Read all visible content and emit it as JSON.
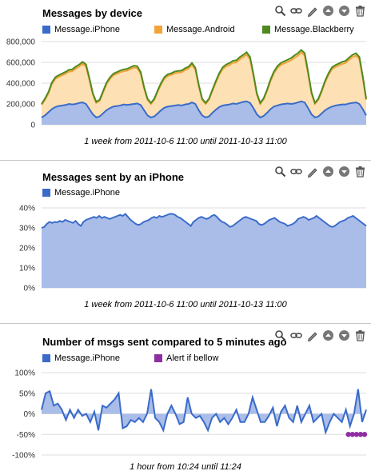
{
  "colors": {
    "iphone": "#3a6bc9",
    "iphone_fill": "#a9bde8",
    "android": "#f2a33a",
    "android_fill": "#fde0b4",
    "blackberry": "#4e8a1f",
    "alert": "#8e2ea0",
    "grid": "#dddddd"
  },
  "toolbar_icons": [
    "search-icon",
    "link-icon",
    "pencil-icon",
    "arrow-up-icon",
    "arrow-down-icon",
    "trash-icon"
  ],
  "chart_data": [
    {
      "type": "area",
      "title": "Messages by device",
      "caption": "1 week from 2011-10-6 11:00 until 2011-10-13 11:00",
      "ylim": [
        0,
        800000
      ],
      "yticks": [
        {
          "v": 0,
          "label": "0"
        },
        {
          "v": 200000,
          "label": "200,000"
        },
        {
          "v": 400000,
          "label": "400,000"
        },
        {
          "v": 600000,
          "label": "600,000"
        },
        {
          "v": 800000,
          "label": "800,000"
        }
      ],
      "grid": true,
      "legend": "top",
      "stacked": true,
      "series": [
        {
          "name": "Message.iPhone",
          "color_key": "iphone",
          "values": [
            70000,
            90000,
            120000,
            150000,
            170000,
            180000,
            185000,
            190000,
            200000,
            195000,
            200000,
            210000,
            215000,
            200000,
            150000,
            100000,
            70000,
            80000,
            110000,
            140000,
            160000,
            175000,
            180000,
            185000,
            195000,
            190000,
            195000,
            200000,
            205000,
            190000,
            140000,
            90000,
            70000,
            80000,
            110000,
            140000,
            165000,
            175000,
            180000,
            185000,
            190000,
            185000,
            195000,
            200000,
            215000,
            200000,
            140000,
            90000,
            70000,
            80000,
            115000,
            145000,
            170000,
            185000,
            190000,
            195000,
            205000,
            200000,
            210000,
            220000,
            225000,
            210000,
            160000,
            100000,
            70000,
            85000,
            115000,
            150000,
            175000,
            185000,
            195000,
            200000,
            205000,
            200000,
            205000,
            215000,
            225000,
            215000,
            160000,
            100000,
            70000,
            80000,
            110000,
            140000,
            160000,
            175000,
            185000,
            190000,
            195000,
            195000,
            205000,
            210000,
            215000,
            200000,
            150000,
            90000
          ]
        },
        {
          "name": "Message.Android",
          "color_key": "android",
          "values": [
            120000,
            150000,
            180000,
            240000,
            270000,
            280000,
            290000,
            300000,
            310000,
            320000,
            340000,
            350000,
            370000,
            360000,
            280000,
            190000,
            140000,
            150000,
            200000,
            250000,
            280000,
            300000,
            310000,
            320000,
            320000,
            330000,
            340000,
            350000,
            340000,
            300000,
            210000,
            150000,
            130000,
            160000,
            210000,
            250000,
            280000,
            295000,
            300000,
            310000,
            310000,
            320000,
            330000,
            340000,
            360000,
            330000,
            230000,
            150000,
            130000,
            160000,
            210000,
            260000,
            310000,
            350000,
            370000,
            380000,
            390000,
            400000,
            420000,
            430000,
            450000,
            420000,
            310000,
            190000,
            130000,
            160000,
            210000,
            270000,
            320000,
            360000,
            380000,
            390000,
            400000,
            420000,
            440000,
            450000,
            470000,
            450000,
            330000,
            200000,
            130000,
            160000,
            210000,
            270000,
            320000,
            360000,
            370000,
            380000,
            390000,
            400000,
            420000,
            440000,
            450000,
            430000,
            300000,
            150000
          ]
        },
        {
          "name": "Message.Blackberry",
          "color_key": "blackberry",
          "values": [
            10000,
            12000,
            14000,
            15000,
            16000,
            17000,
            17000,
            18000,
            18000,
            18000,
            19000,
            19000,
            20000,
            20000,
            17000,
            12000,
            10000,
            11000,
            13000,
            14000,
            15000,
            16000,
            16000,
            17000,
            17000,
            17000,
            18000,
            18000,
            18000,
            17000,
            13000,
            10000,
            10000,
            11000,
            13000,
            14000,
            15000,
            16000,
            16000,
            17000,
            17000,
            17000,
            18000,
            18000,
            19000,
            18000,
            14000,
            10000,
            10000,
            11000,
            13000,
            15000,
            17000,
            18000,
            19000,
            19000,
            20000,
            20000,
            21000,
            22000,
            23000,
            22000,
            17000,
            11000,
            10000,
            11000,
            13000,
            15000,
            17000,
            18000,
            19000,
            20000,
            20000,
            21000,
            22000,
            23000,
            24000,
            23000,
            17000,
            11000,
            10000,
            11000,
            13000,
            15000,
            17000,
            18000,
            19000,
            19000,
            20000,
            20000,
            21000,
            22000,
            23000,
            22000,
            15000,
            9000
          ]
        }
      ]
    },
    {
      "type": "area",
      "title": "Messages sent by an iPhone",
      "caption": "1 week from 2011-10-6 11:00 until 2011-10-13 11:00",
      "ylim": [
        0,
        40
      ],
      "yticks": [
        {
          "v": 0,
          "label": "0%"
        },
        {
          "v": 10,
          "label": "10%"
        },
        {
          "v": 20,
          "label": "20%"
        },
        {
          "v": 30,
          "label": "30%"
        },
        {
          "v": 40,
          "label": "40%"
        }
      ],
      "grid": true,
      "legend": "top",
      "series": [
        {
          "name": "Message.iPhone",
          "color_key": "iphone",
          "values": [
            30,
            30.5,
            32,
            33,
            32.5,
            33,
            32.8,
            33.5,
            33,
            34,
            33.5,
            33,
            32.5,
            33.5,
            32,
            31,
            33,
            34,
            34.5,
            35,
            35.5,
            35,
            36,
            35,
            35.5,
            35,
            34.5,
            35,
            35.5,
            36,
            36.5,
            36,
            37,
            35.5,
            34,
            33,
            32,
            31.5,
            32,
            33,
            33.5,
            34,
            35,
            35.5,
            35,
            36,
            35.5,
            36,
            36.5,
            37,
            37,
            36.5,
            35.5,
            35,
            34,
            33,
            32,
            31,
            33,
            34,
            35,
            35.5,
            35,
            34.5,
            35,
            36,
            36.5,
            35.5,
            34,
            33,
            32.5,
            31.5,
            30.5,
            31,
            32,
            33,
            34,
            35,
            35.5,
            35,
            34.5,
            34,
            33.5,
            32,
            31.5,
            32,
            33,
            34,
            34.5,
            35,
            34,
            33,
            32.5,
            32,
            31,
            31.5,
            32,
            33,
            34.5,
            35,
            35.5,
            35,
            34,
            34.5,
            35,
            36,
            35,
            34,
            33,
            32,
            31,
            30.5,
            31,
            32,
            33,
            33.5,
            34,
            35,
            35.5,
            36,
            35,
            34,
            33,
            32,
            31
          ]
        }
      ]
    },
    {
      "type": "line",
      "title": "Number of msgs sent compared to 5 minutes ago",
      "caption": "1 hour from 10:24 until 11:24",
      "ylim": [
        -100,
        100
      ],
      "yticks": [
        {
          "v": -100,
          "label": "-100%"
        },
        {
          "v": -50,
          "label": "-50%"
        },
        {
          "v": 0,
          "label": "0%"
        },
        {
          "v": 50,
          "label": "50%"
        },
        {
          "v": 100,
          "label": "100%"
        }
      ],
      "grid": true,
      "legend": "top",
      "series": [
        {
          "name": "Message.iPhone",
          "color_key": "iphone",
          "values": [
            10,
            50,
            55,
            20,
            25,
            10,
            -15,
            10,
            -10,
            10,
            -5,
            0,
            -20,
            5,
            -40,
            20,
            15,
            25,
            35,
            50,
            -35,
            -30,
            -15,
            -20,
            -10,
            -20,
            0,
            60,
            -10,
            -20,
            -40,
            0,
            20,
            0,
            -25,
            -20,
            40,
            0,
            -10,
            -5,
            -20,
            -40,
            -10,
            0,
            -20,
            -10,
            -25,
            -10,
            10,
            -20,
            -20,
            0,
            40,
            10,
            -20,
            -20,
            -5,
            15,
            -30,
            5,
            20,
            -10,
            -20,
            20,
            -20,
            0,
            20,
            -20,
            -10,
            0,
            -45,
            -20,
            0,
            -10,
            -20,
            10,
            -30,
            0,
            60,
            -20,
            10
          ]
        },
        {
          "name": "Alert if bellow",
          "color_key": "alert",
          "values": [
            -50,
            -50,
            -50,
            -50,
            -50
          ],
          "offset_from_end": true,
          "marker_only": true
        }
      ]
    }
  ]
}
